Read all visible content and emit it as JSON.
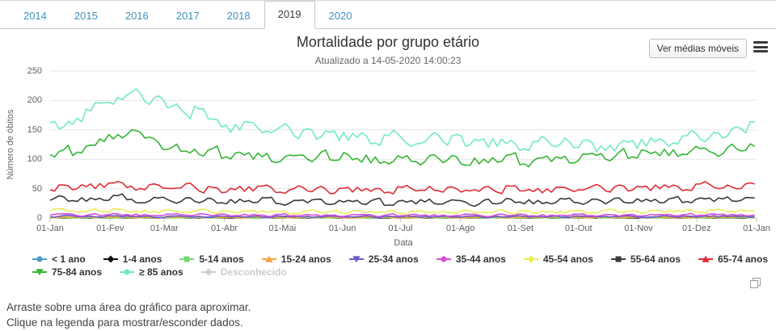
{
  "tabs": {
    "items": [
      "2014",
      "2015",
      "2016",
      "2017",
      "2018",
      "2019",
      "2020"
    ],
    "active": "2019"
  },
  "header": {
    "title": "Mortalidade por grupo etário",
    "subtitle": "Atualizado a 14-05-2020 14:00:23",
    "button_label": "Ver médias móveis"
  },
  "icons": {
    "menu": "hamburger-icon",
    "export": "copy-icon"
  },
  "footer": {
    "line1": "Arraste sobre uma área do gráfico para aproximar.",
    "line2": "Clique na legenda para mostrar/esconder dados."
  },
  "chart_data": {
    "type": "line",
    "title": "Mortalidade por grupo etário",
    "subtitle": "Atualizado a 14-05-2020 14:00:23",
    "xlabel": "Data",
    "ylabel": "Número de óbitos",
    "ylim": [
      0,
      250
    ],
    "y_ticks": [
      0,
      50,
      100,
      150,
      200,
      250
    ],
    "x_tick_labels": [
      "01-Jan",
      "01-Fev",
      "01-Mar",
      "01-Abr",
      "01-Mai",
      "01-Jun",
      "01-Jul",
      "01-Ago",
      "01-Set",
      "01-Out",
      "01-Nov",
      "01-Dez",
      "01-Jan"
    ],
    "x_tick_days": [
      0,
      31,
      59,
      90,
      120,
      151,
      181,
      212,
      243,
      273,
      304,
      334,
      365
    ],
    "x_unit": "day of year 2019, daily series sampled weekly below",
    "sample_interval_days": 7,
    "grid": true,
    "legend_position": "bottom",
    "series": [
      {
        "name": "< 1 ano",
        "color": "#4a9fc3",
        "marker": "circle",
        "visible": true,
        "daily_noise": 1,
        "values": [
          1,
          1,
          2,
          1,
          1,
          2,
          1,
          1,
          1,
          2,
          1,
          1,
          2,
          1,
          1,
          1,
          2,
          1,
          1,
          1,
          2,
          1,
          1,
          2,
          1,
          1,
          1,
          2,
          1,
          1,
          2,
          1,
          1,
          1,
          2,
          1,
          1,
          1,
          2,
          1,
          1,
          2,
          1,
          1,
          1,
          2,
          1,
          1,
          2,
          1,
          1,
          1,
          2
        ]
      },
      {
        "name": "1-4 anos",
        "color": "#101010",
        "marker": "diamond",
        "visible": true,
        "daily_noise": 0.8,
        "values": [
          0,
          0,
          1,
          0,
          0,
          1,
          0,
          0,
          0,
          1,
          0,
          0,
          1,
          0,
          0,
          0,
          1,
          0,
          0,
          0,
          1,
          0,
          0,
          1,
          0,
          0,
          0,
          1,
          0,
          0,
          1,
          0,
          0,
          0,
          1,
          0,
          0,
          0,
          1,
          0,
          0,
          1,
          0,
          0,
          0,
          1,
          0,
          0,
          1,
          0,
          0,
          0,
          1
        ]
      },
      {
        "name": "5-14 anos",
        "color": "#74d974",
        "marker": "square",
        "visible": true,
        "daily_noise": 0.8,
        "values": [
          0,
          1,
          0,
          1,
          0,
          1,
          0,
          0,
          1,
          0,
          0,
          1,
          0,
          1,
          0,
          0,
          1,
          0,
          0,
          1,
          0,
          0,
          1,
          0,
          0,
          1,
          0,
          0,
          1,
          0,
          0,
          1,
          0,
          0,
          1,
          0,
          0,
          1,
          0,
          0,
          1,
          0,
          0,
          1,
          0,
          0,
          1,
          0,
          0,
          1,
          0,
          1,
          0
        ]
      },
      {
        "name": "15-24 anos",
        "color": "#f2a33c",
        "marker": "triangle",
        "visible": true,
        "daily_noise": 1,
        "values": [
          1,
          2,
          1,
          2,
          1,
          2,
          1,
          1,
          0,
          2,
          1,
          2,
          1,
          1,
          0,
          2,
          1,
          1,
          0,
          2,
          1,
          1,
          0,
          1,
          1,
          2,
          0,
          1,
          1,
          2,
          0,
          1,
          1,
          2,
          0,
          1,
          1,
          2,
          1,
          1,
          0,
          2,
          1,
          1,
          1,
          2,
          0,
          1,
          1,
          2,
          1,
          2,
          1
        ]
      },
      {
        "name": "25-34 anos",
        "color": "#6a5acd",
        "marker": "triangle-down",
        "visible": true,
        "daily_noise": 1.5,
        "values": [
          2,
          4,
          2,
          3,
          2,
          4,
          2,
          3,
          1,
          3,
          2,
          3,
          1,
          3,
          2,
          3,
          1,
          3,
          2,
          3,
          1,
          3,
          2,
          3,
          1,
          3,
          2,
          3,
          1,
          3,
          2,
          3,
          1,
          3,
          2,
          3,
          2,
          3,
          1,
          3,
          2,
          3,
          2,
          3,
          1,
          3,
          2,
          3,
          2,
          4,
          2,
          3,
          2
        ]
      },
      {
        "name": "35-44 anos",
        "color": "#d24fd2",
        "marker": "circle",
        "visible": true,
        "daily_noise": 2,
        "values": [
          5,
          7,
          4,
          6,
          5,
          7,
          4,
          6,
          4,
          6,
          5,
          7,
          4,
          6,
          4,
          6,
          3,
          6,
          4,
          6,
          3,
          5,
          4,
          6,
          3,
          6,
          4,
          6,
          3,
          5,
          4,
          6,
          3,
          6,
          4,
          6,
          3,
          5,
          4,
          6,
          4,
          6,
          3,
          6,
          4,
          6,
          4,
          6,
          5,
          7,
          4,
          6,
          5
        ]
      },
      {
        "name": "45-54 anos",
        "color": "#ecec57",
        "marker": "diamond",
        "visible": true,
        "daily_noise": 3,
        "values": [
          12,
          15,
          10,
          14,
          11,
          15,
          10,
          13,
          9,
          13,
          10,
          14,
          9,
          12,
          10,
          13,
          9,
          12,
          8,
          12,
          9,
          13,
          8,
          12,
          9,
          12,
          8,
          11,
          9,
          12,
          8,
          12,
          9,
          13,
          8,
          12,
          9,
          12,
          8,
          13,
          9,
          13,
          10,
          13,
          9,
          13,
          10,
          14,
          10,
          13,
          11,
          14,
          12
        ]
      },
      {
        "name": "55-64 anos",
        "color": "#3b3b3b",
        "marker": "square",
        "visible": true,
        "daily_noise": 5,
        "values": [
          30,
          36,
          28,
          34,
          30,
          38,
          32,
          26,
          34,
          28,
          34,
          26,
          32,
          24,
          32,
          26,
          34,
          24,
          30,
          26,
          32,
          24,
          30,
          24,
          32,
          22,
          30,
          24,
          32,
          24,
          30,
          22,
          30,
          24,
          32,
          24,
          30,
          24,
          32,
          26,
          32,
          24,
          34,
          26,
          32,
          26,
          34,
          28,
          34,
          28,
          36,
          30,
          34
        ]
      },
      {
        "name": "65-74 anos",
        "color": "#dd2c35",
        "marker": "triangle",
        "visible": true,
        "daily_noise": 6,
        "values": [
          48,
          56,
          50,
          58,
          52,
          62,
          54,
          48,
          56,
          50,
          58,
          46,
          52,
          44,
          54,
          46,
          56,
          44,
          50,
          46,
          54,
          42,
          52,
          46,
          50,
          44,
          52,
          46,
          54,
          44,
          50,
          46,
          52,
          44,
          54,
          46,
          50,
          44,
          52,
          48,
          54,
          46,
          56,
          48,
          54,
          50,
          56,
          48,
          58,
          52,
          56,
          50,
          58
        ]
      },
      {
        "name": "75-84 anos",
        "color": "#34b534",
        "marker": "triangle-down",
        "visible": true,
        "daily_noise": 9,
        "values": [
          108,
          116,
          112,
          124,
          130,
          142,
          150,
          136,
          128,
          120,
          114,
          108,
          118,
          104,
          112,
          100,
          110,
          96,
          106,
          100,
          112,
          98,
          108,
          95,
          104,
          92,
          102,
          96,
          106,
          94,
          104,
          90,
          100,
          95,
          108,
          92,
          102,
          96,
          105,
          98,
          110,
          100,
          112,
          104,
          114,
          106,
          116,
          108,
          118,
          110,
          120,
          114,
          122
        ]
      },
      {
        "name": "≥ 85 anos",
        "color": "#72e8c8",
        "marker": "circle",
        "visible": true,
        "daily_noise": 11,
        "values": [
          162,
          155,
          170,
          182,
          196,
          205,
          214,
          198,
          208,
          190,
          177,
          185,
          168,
          158,
          150,
          162,
          148,
          155,
          140,
          152,
          138,
          148,
          132,
          145,
          128,
          140,
          135,
          126,
          138,
          130,
          142,
          125,
          135,
          122,
          132,
          118,
          130,
          124,
          136,
          120,
          128,
          115,
          126,
          132,
          122,
          135,
          128,
          140,
          134,
          146,
          140,
          152,
          163
        ]
      },
      {
        "name": "Desconhecido",
        "color": "#cccccc",
        "marker": "diamond",
        "visible": false,
        "daily_noise": 0,
        "values": []
      }
    ]
  }
}
